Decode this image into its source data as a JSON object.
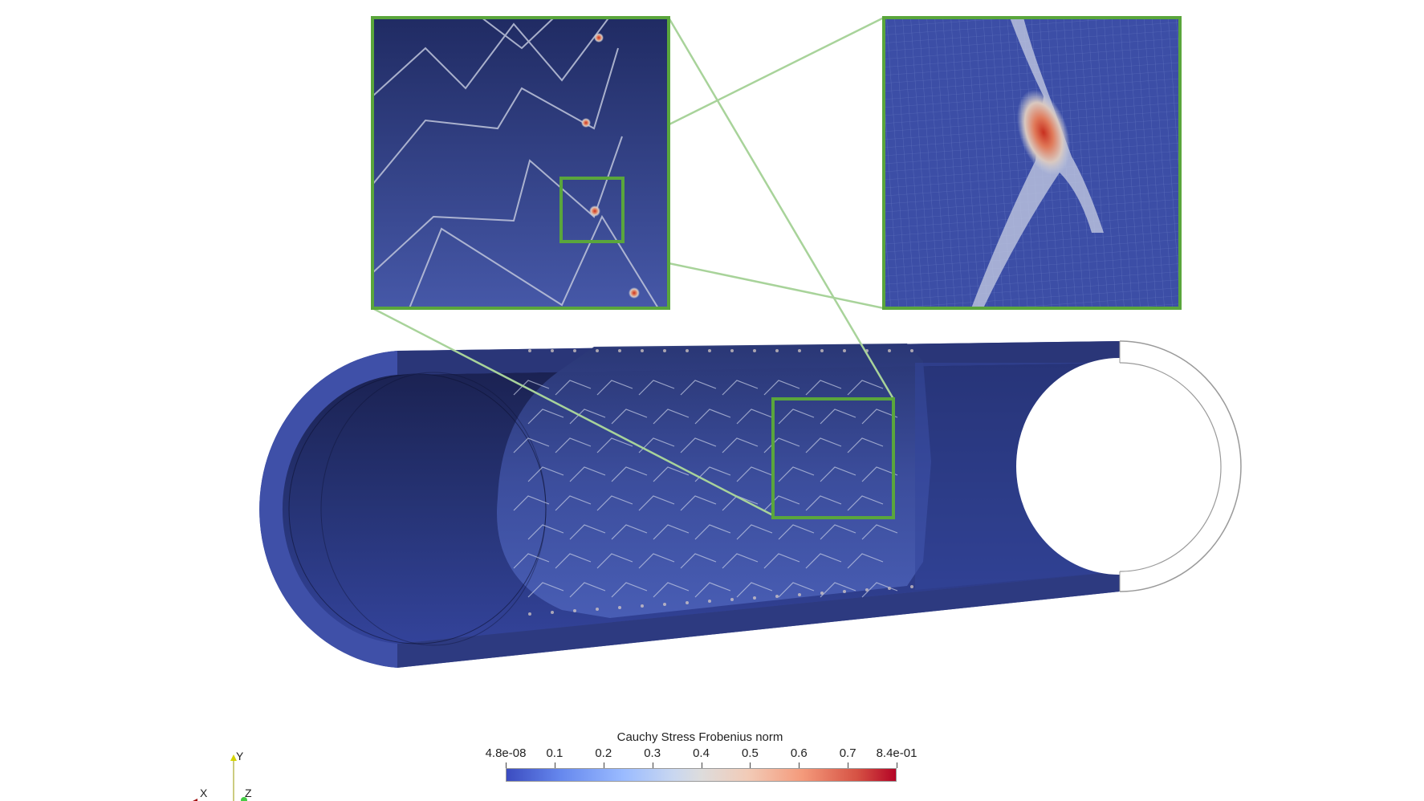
{
  "colorbar": {
    "title": "Cauchy Stress Frobenius norm",
    "ticks": [
      "4.8e-08",
      "0.1",
      "0.2",
      "0.3",
      "0.4",
      "0.5",
      "0.6",
      "0.7",
      "8.4e-01"
    ],
    "colormap": [
      "#3b4cc0",
      "#dddcdc",
      "#b40426"
    ]
  },
  "axes": {
    "y": "Y",
    "x": "X",
    "z": "Z"
  },
  "colors": {
    "highlight": "#5aa63c",
    "connector": "#a8d39a",
    "tube_outer": "#3c4c9e",
    "tube_inner": "#1f2a5c",
    "stent_region": "#4a5db8"
  }
}
